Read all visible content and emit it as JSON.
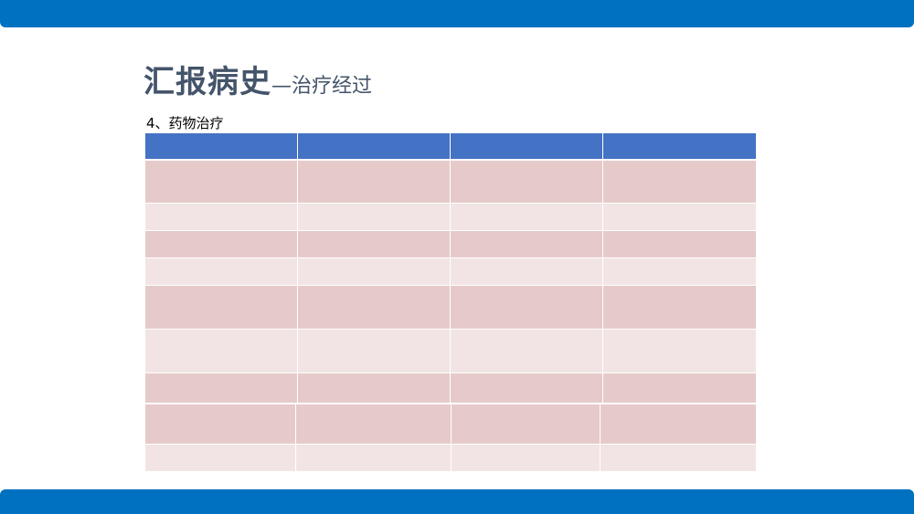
{
  "slide": {
    "title_main": "汇报病史",
    "title_sub": "—治疗经过",
    "section_label": "4、药物治疗"
  },
  "colors": {
    "band": "#0070C0",
    "table_header": "#4472C4",
    "row_dark": "#E6CACA",
    "row_light": "#F2E4E4",
    "title": "#44546A"
  },
  "table": {
    "header": [
      "",
      "",
      "",
      ""
    ],
    "rows": [
      [
        "",
        "",
        "",
        ""
      ],
      [
        "",
        "",
        "",
        ""
      ],
      [
        "",
        "",
        "",
        ""
      ],
      [
        "",
        "",
        "",
        ""
      ],
      [
        "",
        "",
        "",
        ""
      ],
      [
        "",
        "",
        "",
        ""
      ],
      [
        "",
        "",
        "",
        ""
      ]
    ],
    "table2_rows": [
      [
        "",
        "",
        "",
        ""
      ],
      [
        "",
        "",
        "",
        ""
      ]
    ]
  }
}
